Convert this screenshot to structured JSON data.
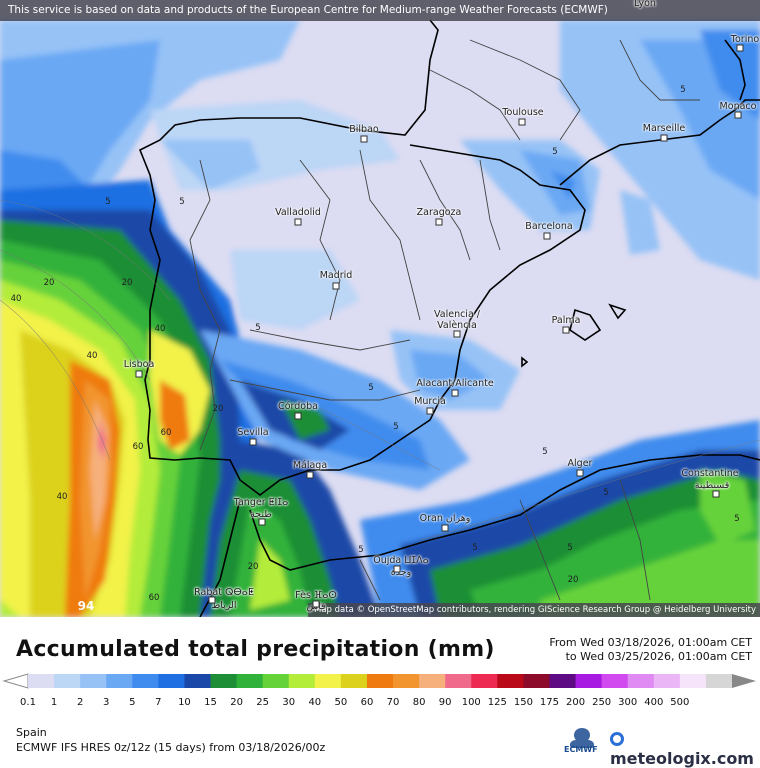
{
  "header": {
    "notice": "This service is based on data and products of the European Centre for Medium-range Weather Forecasts (ECMWF)"
  },
  "map": {
    "attribution": "Map data © OpenStreetMap contributors, rendering GIScience Research Group @ Heidelberg University",
    "cities": [
      {
        "name": "Lyon"
      },
      {
        "name": "Torino"
      },
      {
        "name": "Monaco"
      },
      {
        "name": "Marseille"
      },
      {
        "name": "Toulouse"
      },
      {
        "name": "Bilbao"
      },
      {
        "name": "Valladolid"
      },
      {
        "name": "Zaragoza"
      },
      {
        "name": "Barcelona"
      },
      {
        "name": "Madrid"
      },
      {
        "name": "Valencia / València"
      },
      {
        "name": "Palma"
      },
      {
        "name": "Lisboa"
      },
      {
        "name": "Alacant/Alicante"
      },
      {
        "name": "Murcia"
      },
      {
        "name": "Córdoba"
      },
      {
        "name": "Sevilla"
      },
      {
        "name": "Málaga"
      },
      {
        "name": "Alger"
      },
      {
        "name": "Constantine"
      },
      {
        "name": "قسنطينة"
      },
      {
        "name": "Tanger ⵟⵏⵊⴰ"
      },
      {
        "name": "طنجة"
      },
      {
        "name": "Oran وهران"
      },
      {
        "name": "Oujda ⵡⵊⴷⴰ"
      },
      {
        "name": "وجدة"
      },
      {
        "name": "Rabat ⵕⴱⴰⵟ"
      },
      {
        "name": "الرباط"
      },
      {
        "name": "Fès ⴼⴰⵙ"
      },
      {
        "name": "فاس"
      }
    ],
    "contour_labels": [
      "5",
      "5",
      "5",
      "5",
      "5",
      "20",
      "40",
      "20",
      "40",
      "40",
      "60",
      "60",
      "40",
      "20",
      "5",
      "5",
      "5",
      "5",
      "5",
      "20",
      "5",
      "60",
      "94",
      "20",
      "5",
      "5"
    ]
  },
  "legend": {
    "title": "Accumulated total precipitation (mm)",
    "from": "From Wed 03/18/2026, 01:00am CET",
    "to": "to Wed 03/25/2026, 01:00am CET",
    "colors": [
      "#dcdcf2",
      "#bcd6f6",
      "#96c2f6",
      "#6aa8f4",
      "#3f8cee",
      "#1f6fe2",
      "#1a48a8",
      "#1e8e36",
      "#30b23a",
      "#66d23a",
      "#b4ec3a",
      "#f2f24a",
      "#dcd21e",
      "#ef7a10",
      "#f2952e",
      "#f6b07c",
      "#f06a8c",
      "#ec2a52",
      "#ba0a1a",
      "#8c0a2a",
      "#5e0a82",
      "#a61ae2",
      "#d04af0",
      "#e08af4",
      "#eab6f6",
      "#f6e4fa",
      "#d6d6d6"
    ],
    "ticks": [
      "0.1",
      "1",
      "2",
      "3",
      "5",
      "7",
      "10",
      "15",
      "20",
      "25",
      "30",
      "40",
      "50",
      "60",
      "70",
      "80",
      "90",
      "100",
      "125",
      "150",
      "175",
      "200",
      "250",
      "300",
      "400",
      "500"
    ]
  },
  "footer": {
    "region": "Spain",
    "model": "ECMWF IFS HRES 0z/12z (15 days) from  03/18/2026/00z",
    "ecmwf_logo_text": "ECMWF",
    "brand": "meteologix.com"
  }
}
